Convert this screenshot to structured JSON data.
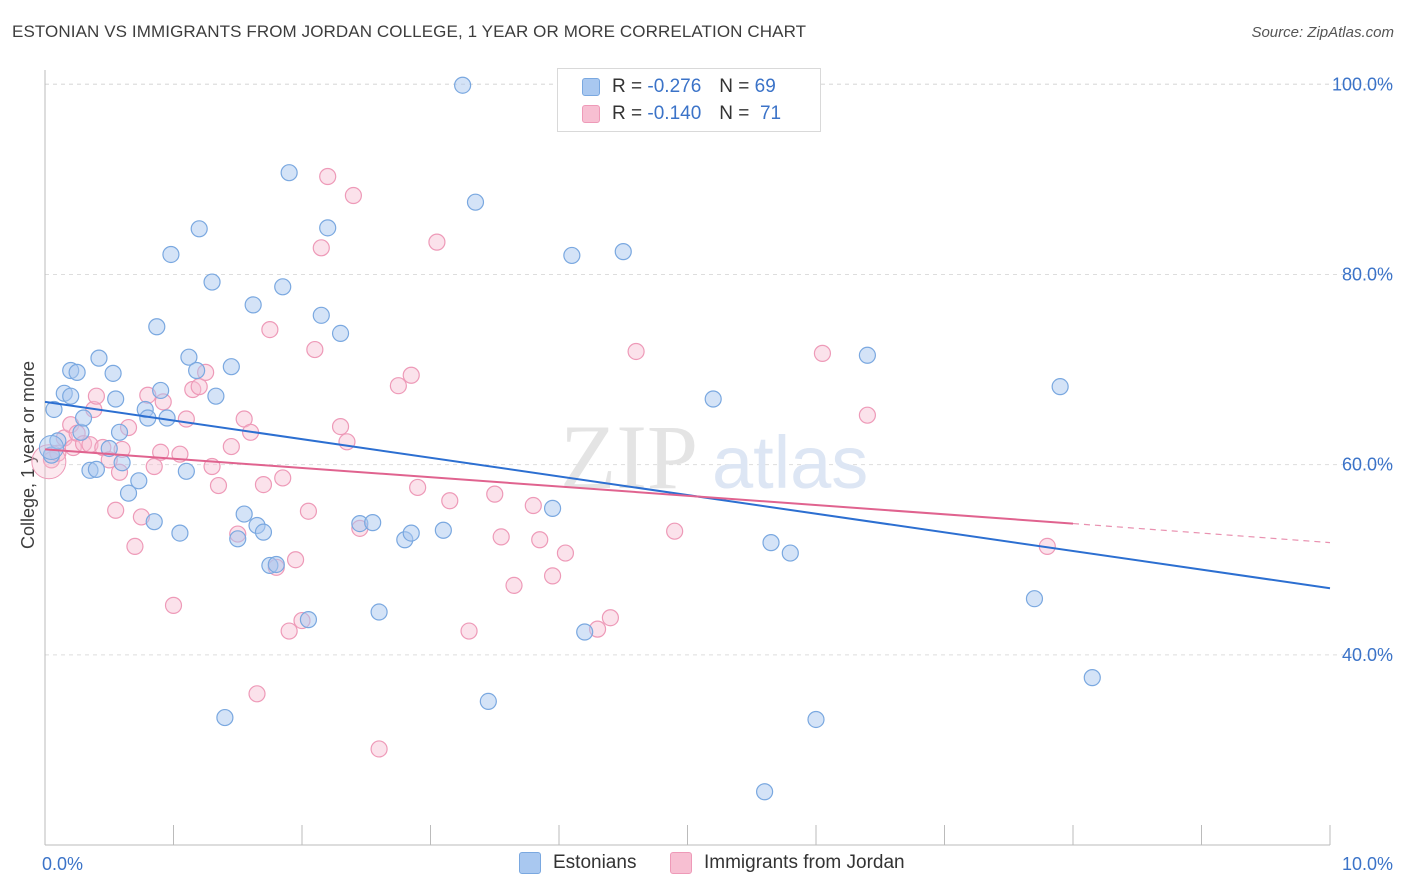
{
  "title": "ESTONIAN VS IMMIGRANTS FROM JORDAN COLLEGE, 1 YEAR OR MORE CORRELATION CHART",
  "source": "Source: ZipAtlas.com",
  "watermark": {
    "zip": "ZIP",
    "atlas": "atlas"
  },
  "legend_top": [
    {
      "r_label": "R =",
      "r_value": "-0.276",
      "n_label": "N =",
      "n_value": "69"
    },
    {
      "r_label": "R =",
      "r_value": "-0.140",
      "n_label": "N =",
      "n_value": "71"
    }
  ],
  "legend_bottom": [
    "Estonians",
    "Immigrants from Jordan"
  ],
  "colors": {
    "estonians_fill": "#a9c8f0",
    "estonians_stroke": "#7aa8e0",
    "estonians_line": "#2c6fd1",
    "jordan_fill": "#f7bfd2",
    "jordan_stroke": "#ee9ab8",
    "jordan_line": "#e0638f",
    "tick_text": "#3b73c8",
    "grid": "#dddddd"
  },
  "chart_data": {
    "type": "scatter",
    "title": "ESTONIAN VS IMMIGRANTS FROM JORDAN COLLEGE, 1 YEAR OR MORE CORRELATION CHART",
    "xlabel": "",
    "ylabel": "College, 1 year or more",
    "xlim": [
      0,
      10
    ],
    "ylim": [
      20,
      101.5
    ],
    "x_tick_labels": [
      "0.0%",
      "10.0%"
    ],
    "y_ticks": [
      40,
      60,
      80,
      100
    ],
    "y_tick_labels": [
      "40.0%",
      "60.0%",
      "80.0%",
      "100.0%"
    ],
    "grid": true,
    "legend_position": "top-center",
    "series": [
      {
        "name": "Estonians",
        "r": -0.276,
        "n": 69,
        "trend": {
          "x": [
            0,
            10
          ],
          "y": [
            66.6,
            47.0
          ]
        },
        "points": [
          [
            0.05,
            61
          ],
          [
            0.07,
            65.8
          ],
          [
            0.1,
            62.5
          ],
          [
            0.15,
            67.5
          ],
          [
            0.2,
            67.2
          ],
          [
            0.2,
            69.9
          ],
          [
            0.25,
            69.7
          ],
          [
            0.28,
            63.4
          ],
          [
            0.3,
            64.9
          ],
          [
            0.35,
            59.4
          ],
          [
            0.4,
            59.5
          ],
          [
            0.42,
            71.2
          ],
          [
            0.5,
            61.7
          ],
          [
            0.53,
            69.6
          ],
          [
            0.55,
            66.9
          ],
          [
            0.58,
            63.4
          ],
          [
            0.6,
            60.2
          ],
          [
            0.65,
            57
          ],
          [
            0.73,
            58.3
          ],
          [
            0.78,
            65.8
          ],
          [
            0.8,
            64.9
          ],
          [
            0.85,
            54
          ],
          [
            0.87,
            74.5
          ],
          [
            0.9,
            67.8
          ],
          [
            0.95,
            64.9
          ],
          [
            0.98,
            82.1
          ],
          [
            1.05,
            52.8
          ],
          [
            1.1,
            59.3
          ],
          [
            1.12,
            71.3
          ],
          [
            1.18,
            69.9
          ],
          [
            1.2,
            84.8
          ],
          [
            1.3,
            79.2
          ],
          [
            1.33,
            67.2
          ],
          [
            1.4,
            33.4
          ],
          [
            1.45,
            70.3
          ],
          [
            1.5,
            52.2
          ],
          [
            1.55,
            54.8
          ],
          [
            1.62,
            76.8
          ],
          [
            1.65,
            53.6
          ],
          [
            1.7,
            52.9
          ],
          [
            1.75,
            49.4
          ],
          [
            1.8,
            49.5
          ],
          [
            1.85,
            78.7
          ],
          [
            1.9,
            90.7
          ],
          [
            2.05,
            43.7
          ],
          [
            2.15,
            75.7
          ],
          [
            2.2,
            84.9
          ],
          [
            2.3,
            73.8
          ],
          [
            2.45,
            53.8
          ],
          [
            2.55,
            53.9
          ],
          [
            2.6,
            44.5
          ],
          [
            2.8,
            52.1
          ],
          [
            2.85,
            52.8
          ],
          [
            3.1,
            53.1
          ],
          [
            3.25,
            99.9
          ],
          [
            3.35,
            87.6
          ],
          [
            3.45,
            35.1
          ],
          [
            3.95,
            55.4
          ],
          [
            4.1,
            82
          ],
          [
            4.2,
            42.4
          ],
          [
            4.5,
            82.4
          ],
          [
            5.2,
            66.9
          ],
          [
            5.6,
            25.6
          ],
          [
            5.65,
            51.8
          ],
          [
            5.8,
            50.7
          ],
          [
            6.0,
            33.2
          ],
          [
            6.4,
            71.5
          ],
          [
            7.7,
            45.9
          ],
          [
            7.9,
            68.2
          ],
          [
            8.15,
            37.6
          ]
        ]
      },
      {
        "name": "Immigrants from Jordan",
        "r": -0.14,
        "n": 71,
        "trend": {
          "x": [
            0,
            8
          ],
          "y": [
            61.6,
            53.8
          ]
        },
        "trend_dashed": {
          "x": [
            8,
            10
          ],
          "y": [
            53.8,
            51.8
          ]
        },
        "points": [
          [
            0.05,
            60.5
          ],
          [
            0.1,
            61.2
          ],
          [
            0.15,
            62.8
          ],
          [
            0.2,
            64.2
          ],
          [
            0.22,
            61.8
          ],
          [
            0.25,
            63.3
          ],
          [
            0.3,
            62.2
          ],
          [
            0.35,
            62.1
          ],
          [
            0.38,
            65.8
          ],
          [
            0.4,
            67.2
          ],
          [
            0.45,
            61.8
          ],
          [
            0.5,
            60.5
          ],
          [
            0.55,
            55.2
          ],
          [
            0.58,
            59.2
          ],
          [
            0.6,
            61.6
          ],
          [
            0.65,
            63.9
          ],
          [
            0.7,
            51.4
          ],
          [
            0.75,
            54.5
          ],
          [
            0.8,
            67.3
          ],
          [
            0.85,
            59.8
          ],
          [
            0.9,
            61.3
          ],
          [
            0.92,
            66.6
          ],
          [
            1.0,
            45.2
          ],
          [
            1.05,
            61.1
          ],
          [
            1.1,
            64.8
          ],
          [
            1.15,
            67.9
          ],
          [
            1.2,
            68.2
          ],
          [
            1.25,
            69.7
          ],
          [
            1.3,
            59.8
          ],
          [
            1.35,
            57.8
          ],
          [
            1.45,
            61.9
          ],
          [
            1.5,
            52.7
          ],
          [
            1.55,
            64.8
          ],
          [
            1.6,
            63.4
          ],
          [
            1.65,
            35.9
          ],
          [
            1.7,
            57.9
          ],
          [
            1.75,
            74.2
          ],
          [
            1.8,
            49.2
          ],
          [
            1.85,
            58.6
          ],
          [
            1.9,
            42.5
          ],
          [
            1.95,
            50
          ],
          [
            2.0,
            43.6
          ],
          [
            2.05,
            55.1
          ],
          [
            2.1,
            72.1
          ],
          [
            2.15,
            82.8
          ],
          [
            2.2,
            90.3
          ],
          [
            2.3,
            64
          ],
          [
            2.35,
            62.4
          ],
          [
            2.4,
            88.3
          ],
          [
            2.45,
            53.3
          ],
          [
            2.6,
            30.1
          ],
          [
            2.75,
            68.3
          ],
          [
            2.85,
            69.4
          ],
          [
            2.9,
            57.6
          ],
          [
            3.05,
            83.4
          ],
          [
            3.15,
            56.2
          ],
          [
            3.3,
            42.5
          ],
          [
            3.5,
            56.9
          ],
          [
            3.55,
            52.4
          ],
          [
            3.65,
            47.3
          ],
          [
            3.8,
            55.7
          ],
          [
            3.85,
            52.1
          ],
          [
            3.95,
            48.3
          ],
          [
            4.05,
            50.7
          ],
          [
            4.3,
            42.7
          ],
          [
            4.4,
            43.9
          ],
          [
            4.6,
            71.9
          ],
          [
            4.9,
            53
          ],
          [
            6.05,
            71.7
          ],
          [
            6.4,
            65.2
          ],
          [
            7.8,
            51.4
          ]
        ]
      }
    ]
  }
}
